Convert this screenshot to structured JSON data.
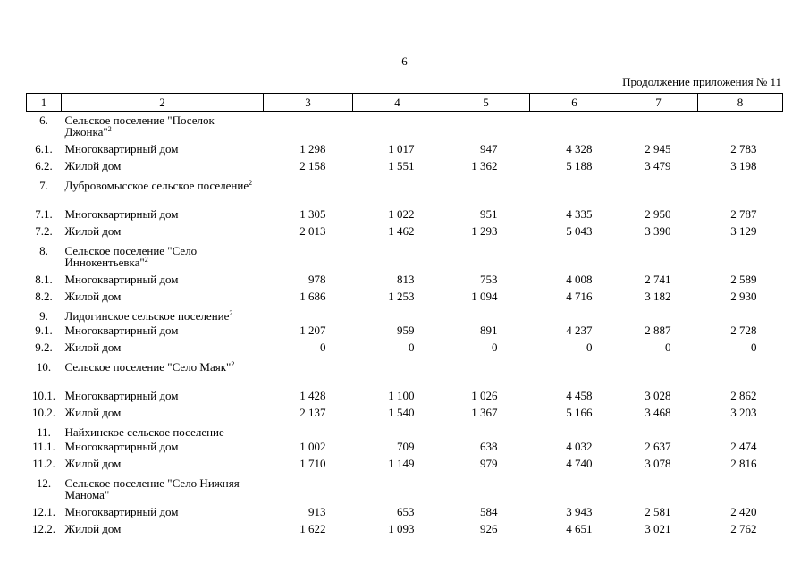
{
  "page_number": "6",
  "appendix_note": "Продолжение приложения № 11",
  "header": [
    "1",
    "2",
    "3",
    "4",
    "5",
    "6",
    "7",
    "8"
  ],
  "rows": [
    {
      "type": "section",
      "lines": 2,
      "num": "6.",
      "name": "Сельское поселение \"Поселок Джонка\"",
      "sup": "2"
    },
    {
      "type": "data",
      "num": "6.1.",
      "name": "Многоквартирный дом",
      "values": [
        "1 298",
        "1 017",
        "947",
        "4 328",
        "2 945",
        "2 783"
      ]
    },
    {
      "type": "data",
      "num": "6.2.",
      "name": "Жилой дом",
      "values": [
        "2 158",
        "1 551",
        "1 362",
        "5 188",
        "3 479",
        "3 198"
      ]
    },
    {
      "type": "section",
      "lines": 2,
      "num": "7.",
      "name": "Дубровомысское сельское поселение",
      "sup": "2"
    },
    {
      "type": "data",
      "num": "7.1.",
      "name": "Многоквартирный дом",
      "values": [
        "1 305",
        "1 022",
        "951",
        "4 335",
        "2 950",
        "2 787"
      ]
    },
    {
      "type": "data",
      "num": "7.2.",
      "name": "Жилой дом",
      "values": [
        "2 013",
        "1 462",
        "1 293",
        "5 043",
        "3 390",
        "3 129"
      ]
    },
    {
      "type": "section",
      "lines": 2,
      "num": "8.",
      "name": "Сельское поселение \"Село Иннокентьевка\"",
      "sup": "2"
    },
    {
      "type": "data",
      "num": "8.1.",
      "name": "Многоквартирный дом",
      "values": [
        "978",
        "813",
        "753",
        "4 008",
        "2 741",
        "2 589"
      ]
    },
    {
      "type": "data",
      "num": "8.2.",
      "name": "Жилой дом",
      "values": [
        "1 686",
        "1 253",
        "1 094",
        "4 716",
        "3 182",
        "2 930"
      ]
    },
    {
      "type": "section",
      "lines": 1,
      "num": "9.",
      "name": "Лидогинское сельское поселение",
      "sup": "2"
    },
    {
      "type": "data",
      "num": "9.1.",
      "name": "Многоквартирный дом",
      "values": [
        "1 207",
        "959",
        "891",
        "4 237",
        "2 887",
        "2 728"
      ]
    },
    {
      "type": "data",
      "num": "9.2.",
      "name": "Жилой дом",
      "values": [
        "0",
        "0",
        "0",
        "0",
        "0",
        "0"
      ]
    },
    {
      "type": "section",
      "lines": 2,
      "num": "10.",
      "name": "Сельское поселение \"Село Маяк\"",
      "sup": "2"
    },
    {
      "type": "data",
      "num": "10.1.",
      "name": "Многоквартирный дом",
      "values": [
        "1 428",
        "1 100",
        "1 026",
        "4 458",
        "3 028",
        "2 862"
      ]
    },
    {
      "type": "data",
      "num": "10.2.",
      "name": "Жилой дом",
      "values": [
        "2 137",
        "1 540",
        "1 367",
        "5 166",
        "3 468",
        "3 203"
      ]
    },
    {
      "type": "section",
      "lines": 1,
      "num": "11.",
      "name": "Найхинское сельское поселение",
      "sup": ""
    },
    {
      "type": "data",
      "num": "11.1.",
      "name": "Многоквартирный дом",
      "values": [
        "1 002",
        "709",
        "638",
        "4 032",
        "2 637",
        "2 474"
      ]
    },
    {
      "type": "data",
      "num": "11.2.",
      "name": "Жилой дом",
      "values": [
        "1 710",
        "1 149",
        "979",
        "4 740",
        "3 078",
        "2 816"
      ]
    },
    {
      "type": "section",
      "lines": 2,
      "num": "12.",
      "name": "Сельское поселение \"Село Нижняя Манома\"",
      "sup": ""
    },
    {
      "type": "data",
      "num": "12.1.",
      "name": "Многоквартирный дом",
      "values": [
        "913",
        "653",
        "584",
        "3 943",
        "2 581",
        "2 420"
      ]
    },
    {
      "type": "data",
      "num": "12.2.",
      "name": "Жилой дом",
      "values": [
        "1 622",
        "1 093",
        "926",
        "4 651",
        "3 021",
        "2 762"
      ]
    }
  ]
}
